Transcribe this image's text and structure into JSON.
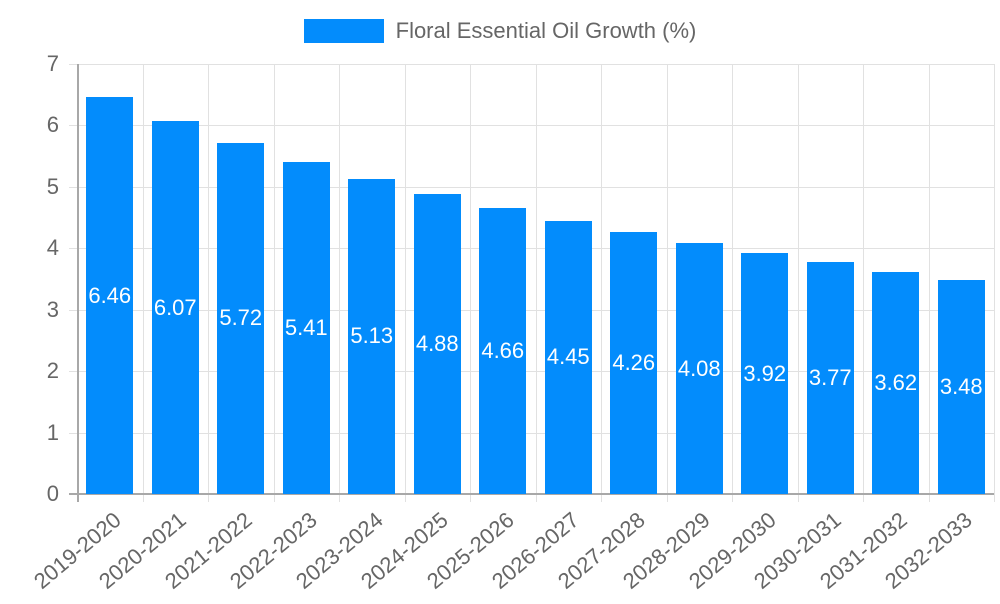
{
  "chart_data": {
    "type": "bar",
    "title": "",
    "xlabel": "",
    "ylabel": "",
    "ylim": [
      0,
      7
    ],
    "yticks": [
      0,
      1,
      2,
      3,
      4,
      5,
      6,
      7
    ],
    "grid": true,
    "legend_position": "top",
    "categories": [
      "2019-2020",
      "2020-2021",
      "2021-2022",
      "2022-2023",
      "2023-2024",
      "2024-2025",
      "2025-2026",
      "2026-2027",
      "2027-2028",
      "2028-2029",
      "2029-2030",
      "2030-2031",
      "2031-2032",
      "2032-2033"
    ],
    "series": [
      {
        "name": "Floral Essential Oil Growth (%)",
        "color": "#038cfc",
        "values": [
          6.46,
          6.07,
          5.72,
          5.41,
          5.13,
          4.88,
          4.66,
          4.45,
          4.26,
          4.08,
          3.92,
          3.77,
          3.62,
          3.48
        ],
        "data_labels": [
          "6.46",
          "6.07",
          "5.72",
          "5.41",
          "5.13",
          "4.88",
          "4.66",
          "4.45",
          "4.26",
          "4.08",
          "3.92",
          "3.77",
          "3.62",
          "3.48"
        ]
      }
    ]
  },
  "legend": {
    "label": "Floral Essential Oil Growth (%)",
    "color": "#038cfc"
  },
  "colors": {
    "bar": "#038cfc",
    "grid": "#e1e1e1",
    "axis": "#a8a8a8",
    "text": "#666666",
    "bar_label": "#ffffff"
  }
}
